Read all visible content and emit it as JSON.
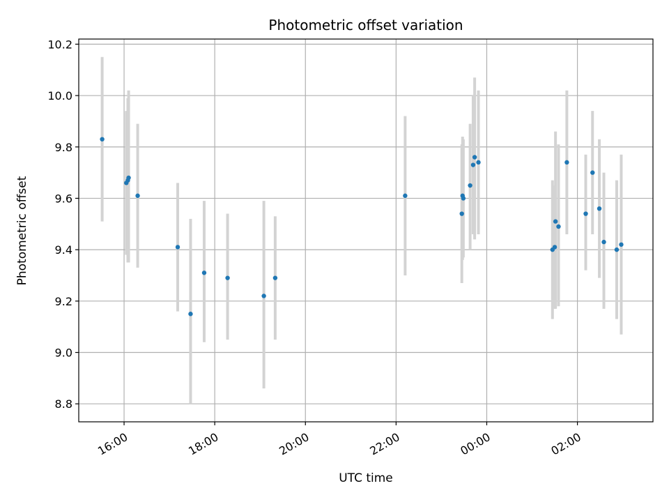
{
  "chart_data": {
    "type": "scatter",
    "title": "Photometric offset variation",
    "xlabel": "UTC time",
    "ylabel": "Photometric offset",
    "x_axis": {
      "kind": "time",
      "range": [
        "15:00",
        "03:40"
      ],
      "ticks": [
        "16:00",
        "18:00",
        "20:00",
        "22:00",
        "00:00",
        "02:00"
      ]
    },
    "y_axis": {
      "range": [
        8.73,
        10.22
      ],
      "ticks": [
        8.8,
        9.0,
        9.2,
        9.4,
        9.6,
        9.8,
        10.0,
        10.2
      ],
      "tick_labels": [
        "8.8",
        "9.0",
        "9.2",
        "9.4",
        "9.6",
        "9.8",
        "10.0",
        "10.2"
      ]
    },
    "grid": true,
    "legend": "none",
    "colors": {
      "points": "#1f77b4",
      "error_bars": "#d3d3d3",
      "grid": "#b0b0b0"
    },
    "points": [
      {
        "time": "15:31",
        "y": 9.83,
        "err_low": 9.51,
        "err_high": 10.15
      },
      {
        "time": "16:03",
        "y": 9.66,
        "err_low": 9.38,
        "err_high": 9.94
      },
      {
        "time": "16:05",
        "y": 9.67,
        "err_low": 9.35,
        "err_high": 9.99
      },
      {
        "time": "16:06",
        "y": 9.68,
        "err_low": 9.35,
        "err_high": 10.02
      },
      {
        "time": "16:18",
        "y": 9.61,
        "err_low": 9.33,
        "err_high": 9.89
      },
      {
        "time": "17:11",
        "y": 9.41,
        "err_low": 9.16,
        "err_high": 9.66
      },
      {
        "time": "17:28",
        "y": 9.15,
        "err_low": 8.8,
        "err_high": 9.52
      },
      {
        "time": "17:46",
        "y": 9.31,
        "err_low": 9.04,
        "err_high": 9.59
      },
      {
        "time": "18:17",
        "y": 9.29,
        "err_low": 9.05,
        "err_high": 9.54
      },
      {
        "time": "19:05",
        "y": 9.22,
        "err_low": 8.86,
        "err_high": 9.59
      },
      {
        "time": "19:20",
        "y": 9.29,
        "err_low": 9.05,
        "err_high": 9.53
      },
      {
        "time": "22:12",
        "y": 9.61,
        "err_low": 9.3,
        "err_high": 9.92
      },
      {
        "time": "23:27",
        "y": 9.54,
        "err_low": 9.27,
        "err_high": 9.81
      },
      {
        "time": "23:28",
        "y": 9.61,
        "err_low": 9.36,
        "err_high": 9.84
      },
      {
        "time": "23:29",
        "y": 9.6,
        "err_low": 9.37,
        "err_high": 9.83
      },
      {
        "time": "23:38",
        "y": 9.65,
        "err_low": 9.4,
        "err_high": 9.89
      },
      {
        "time": "23:42",
        "y": 9.73,
        "err_low": 9.46,
        "err_high": 10.0
      },
      {
        "time": "23:44",
        "y": 9.76,
        "err_low": 9.44,
        "err_high": 10.07
      },
      {
        "time": "23:49",
        "y": 9.74,
        "err_low": 9.46,
        "err_high": 10.02
      },
      {
        "time": "01:27",
        "y": 9.4,
        "err_low": 9.13,
        "err_high": 9.67
      },
      {
        "time": "01:30",
        "y": 9.41,
        "err_low": 9.17,
        "err_high": 9.65
      },
      {
        "time": "01:31",
        "y": 9.51,
        "err_low": 9.17,
        "err_high": 9.86
      },
      {
        "time": "01:35",
        "y": 9.49,
        "err_low": 9.18,
        "err_high": 9.81
      },
      {
        "time": "01:46",
        "y": 9.74,
        "err_low": 9.46,
        "err_high": 10.02
      },
      {
        "time": "02:11",
        "y": 9.54,
        "err_low": 9.32,
        "err_high": 9.77
      },
      {
        "time": "02:20",
        "y": 9.7,
        "err_low": 9.46,
        "err_high": 9.94
      },
      {
        "time": "02:29",
        "y": 9.56,
        "err_low": 9.29,
        "err_high": 9.83
      },
      {
        "time": "02:35",
        "y": 9.43,
        "err_low": 9.17,
        "err_high": 9.7
      },
      {
        "time": "02:52",
        "y": 9.4,
        "err_low": 9.13,
        "err_high": 9.67
      },
      {
        "time": "02:58",
        "y": 9.42,
        "err_low": 9.07,
        "err_high": 9.77
      }
    ]
  }
}
